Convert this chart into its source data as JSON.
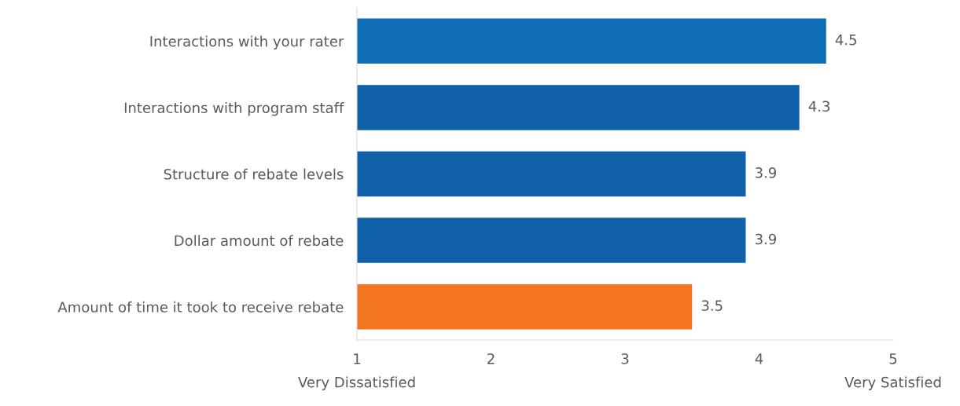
{
  "chart_data": {
    "type": "bar",
    "orientation": "horizontal",
    "categories": [
      "Interactions with your rater",
      "Interactions with program staff",
      "Structure of rebate levels",
      "Dollar amount of rebate",
      "Amount of time it took to receive rebate"
    ],
    "values": [
      4.5,
      4.3,
      3.9,
      3.9,
      3.5
    ],
    "colors": [
      "#0f6db5",
      "#1060a8",
      "#1060a8",
      "#1060a8",
      "#f37421"
    ],
    "xlim": [
      1,
      5
    ],
    "xticks": [
      {
        "value": 1,
        "label": "1\nVery Dissatisfied"
      },
      2,
      3,
      4,
      {
        "value": 5,
        "label": "5\nVery Satisfied"
      }
    ],
    "data_labels": true,
    "grid": false,
    "legend": false
  }
}
